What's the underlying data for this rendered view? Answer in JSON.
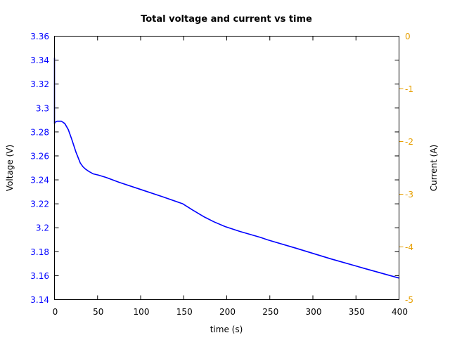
{
  "chart_data": {
    "type": "line",
    "title": "Total voltage and current vs time",
    "xlabel": "time (s)",
    "ylabel": "Voltage (V)",
    "y2label": "Current (A)",
    "xlim": [
      0,
      400
    ],
    "ylim": [
      3.14,
      3.36
    ],
    "y2lim": [
      -5,
      0
    ],
    "x_ticks": [
      0,
      50,
      100,
      150,
      200,
      250,
      300,
      350,
      400
    ],
    "y_ticks": [
      "3.14",
      "3.16",
      "3.18",
      "3.2",
      "3.22",
      "3.24",
      "3.26",
      "3.28",
      "3.3",
      "3.32",
      "3.34",
      "3.36"
    ],
    "y2_ticks": [
      "-5",
      "-4",
      "-3",
      "-2",
      "-1",
      "0"
    ],
    "grid": false,
    "legend": null,
    "colors": {
      "voltage": "#0000ff",
      "current_axis": "#e69f00",
      "frame": "#000000"
    },
    "series": [
      {
        "name": "Voltage",
        "axis": "left",
        "color": "#0000ff",
        "x": [
          0,
          0,
          0.5,
          3,
          8,
          12,
          16,
          20,
          25,
          30,
          33,
          36,
          40,
          45,
          51,
          60,
          75,
          100,
          125,
          149,
          160,
          174,
          185,
          198,
          215,
          239,
          247,
          280,
          321,
          360,
          400
        ],
        "y": [
          3.342,
          3.287,
          3.288,
          3.289,
          3.289,
          3.287,
          3.282,
          3.274,
          3.263,
          3.254,
          3.251,
          3.249,
          3.247,
          3.245,
          3.244,
          3.242,
          3.238,
          3.232,
          3.226,
          3.22,
          3.215,
          3.209,
          3.205,
          3.201,
          3.197,
          3.192,
          3.19,
          3.183,
          3.174,
          3.166,
          3.158
        ]
      }
    ]
  }
}
